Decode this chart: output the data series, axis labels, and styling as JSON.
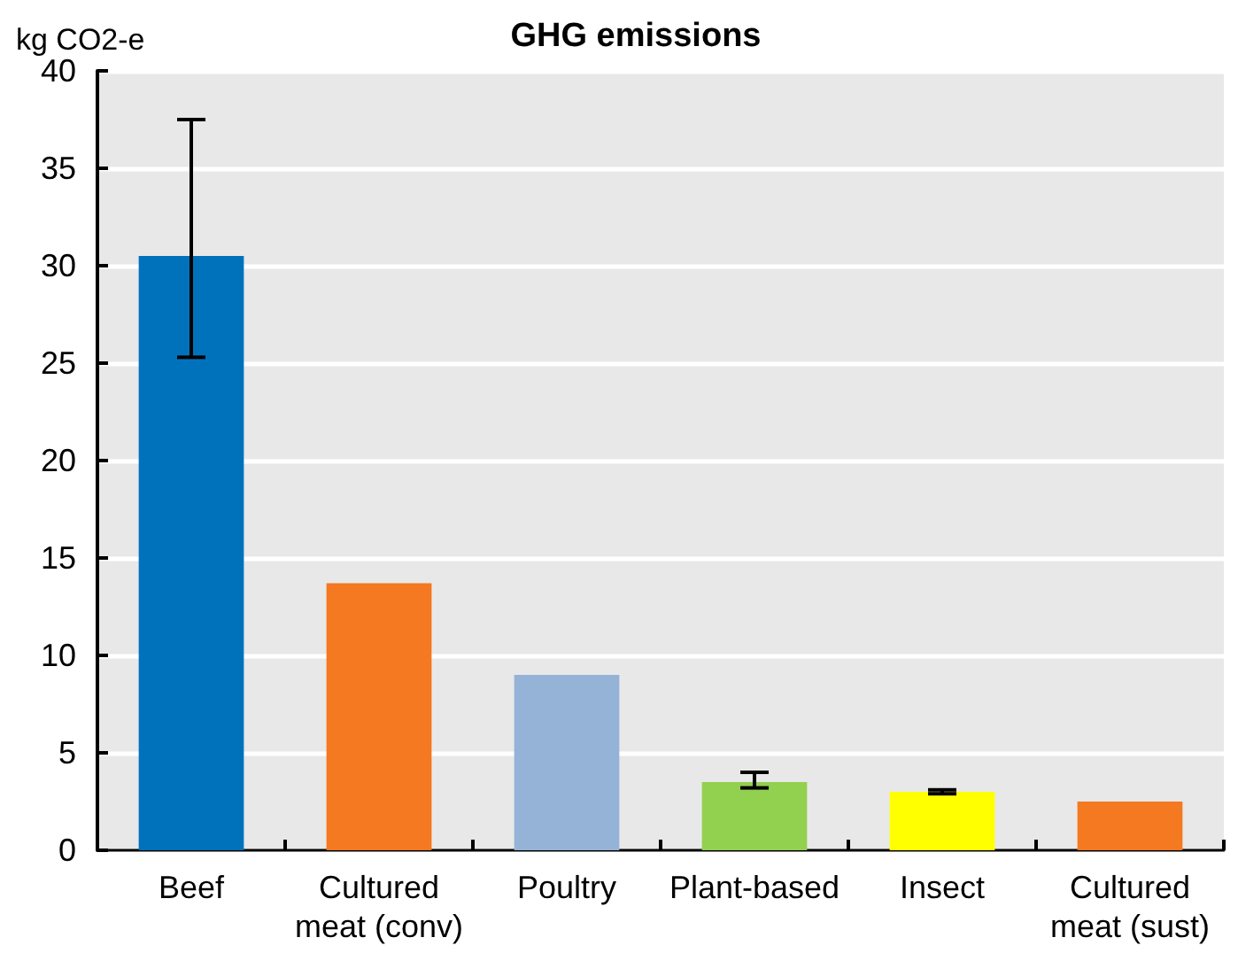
{
  "chart_data": {
    "type": "bar",
    "title": "GHG emissions",
    "ylabel": "kg CO2-e",
    "categories": [
      "Beef",
      "Cultured\nmeat (conv)",
      "Poultry",
      "Plant-based",
      "Insect",
      "Cultured\nmeat (sust)"
    ],
    "values": [
      30.5,
      13.7,
      9.0,
      3.5,
      3.0,
      2.5
    ],
    "colors": [
      "#0072bc",
      "#f47920",
      "#95b3d7",
      "#92d050",
      "#ffff00",
      "#f47920"
    ],
    "errors": [
      [
        25.3,
        37.5
      ],
      null,
      null,
      [
        3.2,
        4.0
      ],
      [
        2.9,
        3.1
      ],
      null
    ],
    "ylim": [
      0,
      40
    ],
    "yticks": [
      0,
      5,
      10,
      15,
      20,
      25,
      30,
      35,
      40
    ],
    "grid": "y"
  }
}
